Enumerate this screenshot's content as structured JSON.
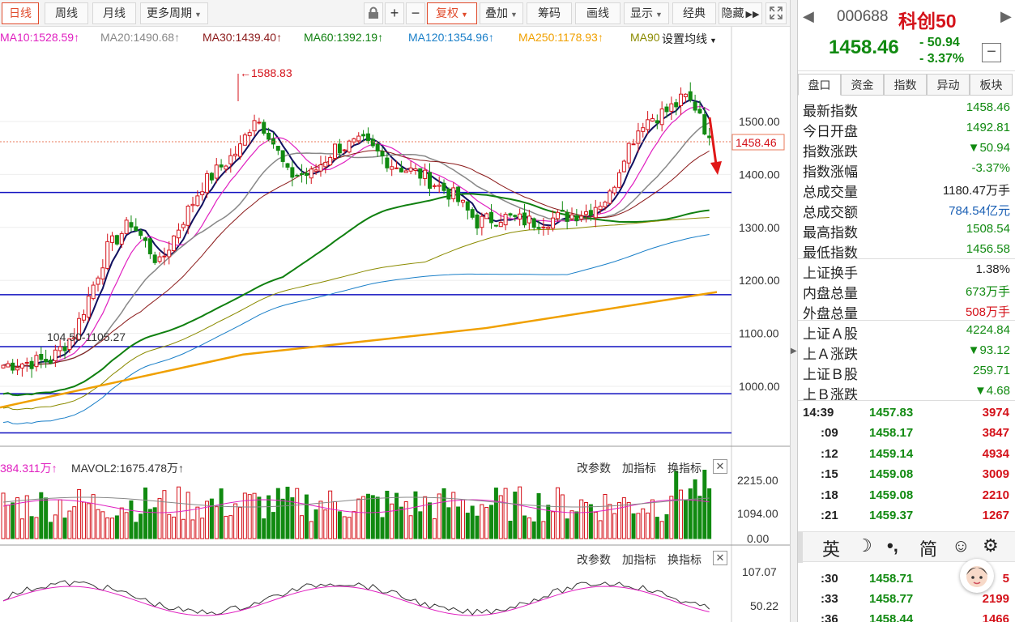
{
  "toolbar": {
    "period_tabs": [
      "日线",
      "周线",
      "月线",
      "更多周期"
    ],
    "tools": [
      "复权",
      "叠加",
      "筹码",
      "画线",
      "显示",
      "经典",
      "隐藏"
    ],
    "lock_icon": "lock-icon",
    "zoom_in": "+",
    "zoom_out": "−"
  },
  "ma_legend": {
    "items": [
      {
        "text": "MA10:1528.59↑",
        "color": "#e020c0"
      },
      {
        "text": "MA20:1490.68↑",
        "color": "#888888"
      },
      {
        "text": "MA30:1439.40↑",
        "color": "#8b1a1a"
      },
      {
        "text": "MA60:1392.19↑",
        "color": "#108010"
      },
      {
        "text": "MA120:1354.96↑",
        "color": "#1a7fc8"
      },
      {
        "text": "MA250:1178.93↑",
        "color": "#f0a000"
      },
      {
        "text": "MA90",
        "color": "#8b8b00"
      }
    ],
    "setting": "设置均线"
  },
  "chart": {
    "price_labels": [
      "1500.00",
      "1400.00",
      "1300.00",
      "1200.00",
      "1100.00",
      "1000.00"
    ],
    "price_values": [
      1500,
      1400,
      1300,
      1200,
      1100,
      1000
    ],
    "current_price": "1458.46",
    "high_annotation": "←1588.83",
    "low_annotation": "104.50-1105.27",
    "horizontal_lines": [
      1366,
      1173,
      1075,
      986,
      912
    ]
  },
  "vol_panel": {
    "label1": "384.311万↑",
    "label2": "MAVOL2:1675.478万↑",
    "buttons": [
      "改参数",
      "加指标",
      "换指标"
    ],
    "close": "✕",
    "axis": [
      "2215.00",
      "1094.00",
      "0.00"
    ]
  },
  "ind_panel": {
    "buttons": [
      "改参数",
      "加指标",
      "换指标"
    ],
    "close": "✕",
    "axis": [
      "107.07",
      "50.22"
    ]
  },
  "quote": {
    "code": "000688",
    "name": "科创50",
    "price": "1458.46",
    "change": "- 50.94",
    "change_pct": "- 3.37%",
    "tabs": [
      "盘口",
      "资金",
      "指数",
      "异动",
      "板块"
    ],
    "rows": [
      {
        "label": "最新指数",
        "value": "1458.46",
        "color": "green"
      },
      {
        "label": "今日开盘",
        "value": "1492.81",
        "color": "green"
      },
      {
        "label": "指数涨跌",
        "value": "▼50.94",
        "color": "green"
      },
      {
        "label": "指数涨幅",
        "value": "-3.37%",
        "color": "green"
      },
      {
        "label": "总成交量",
        "value": "1180.47万手",
        "color": "black"
      },
      {
        "label": "总成交额",
        "value": "784.54亿元",
        "color": "blue"
      },
      {
        "label": "最高指数",
        "value": "1508.54",
        "color": "green"
      },
      {
        "label": "最低指数",
        "value": "1456.58",
        "color": "green"
      },
      {
        "label": "上证换手",
        "value": "1.38%",
        "color": "black"
      },
      {
        "label": "内盘总量",
        "value": "673万手",
        "color": "green"
      },
      {
        "label": "外盘总量",
        "value": "508万手",
        "color": "red"
      },
      {
        "label": "上证Ａ股",
        "value": "4224.84",
        "color": "green"
      },
      {
        "label": "上Ａ涨跌",
        "value": "▼93.12",
        "color": "green"
      },
      {
        "label": "上证Ｂ股",
        "value": "259.71",
        "color": "green"
      },
      {
        "label": "上Ｂ涨跌",
        "value": "▼4.68",
        "color": "green"
      }
    ],
    "ticks": [
      {
        "time": "14:39",
        "price": "1457.83",
        "vol": "3974"
      },
      {
        "time": ":09",
        "price": "1458.17",
        "vol": "3847"
      },
      {
        "time": ":12",
        "price": "1459.14",
        "vol": "4934"
      },
      {
        "time": ":15",
        "price": "1459.08",
        "vol": "3009"
      },
      {
        "time": ":18",
        "price": "1459.08",
        "vol": "2210"
      },
      {
        "time": ":21",
        "price": "1459.37",
        "vol": "1267"
      },
      {
        "time": ":30",
        "price": "1458.71",
        "vol": "5"
      },
      {
        "time": ":33",
        "price": "1458.77",
        "vol": "2199"
      },
      {
        "time": ":36",
        "price": "1458.44",
        "vol": "1466"
      }
    ],
    "ime": [
      "英",
      "☽",
      "•,",
      "简",
      "☺",
      "⚙"
    ]
  }
}
